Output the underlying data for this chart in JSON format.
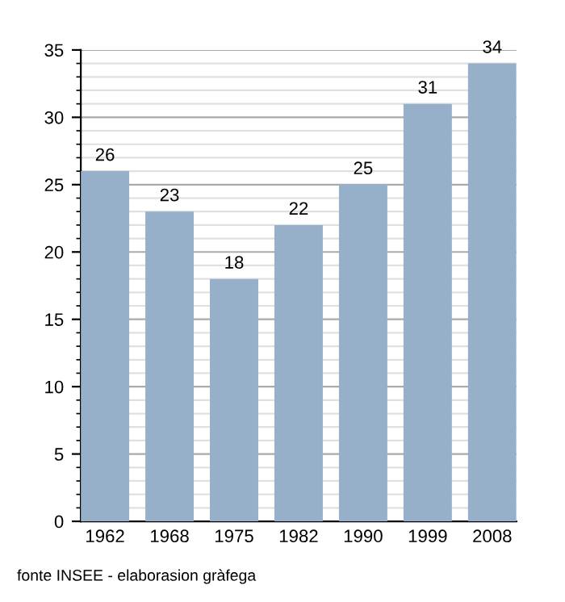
{
  "chart_data": {
    "type": "bar",
    "categories": [
      "1962",
      "1968",
      "1975",
      "1982",
      "1990",
      "1999",
      "2008"
    ],
    "values": [
      26,
      23,
      18,
      22,
      25,
      31,
      34
    ],
    "color": "#97b0c9",
    "ylim": [
      0,
      35
    ],
    "yticks": [
      0,
      5,
      10,
      15,
      20,
      25,
      30,
      35
    ],
    "grid": "y",
    "data_labels": true,
    "annotations": [
      "fonte INSEE - elaborasion gràfega"
    ]
  }
}
